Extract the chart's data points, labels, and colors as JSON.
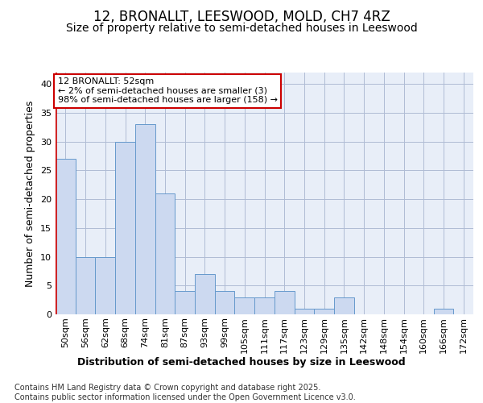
{
  "title_line1": "12, BRONALLT, LEESWOOD, MOLD, CH7 4RZ",
  "title_line2": "Size of property relative to semi-detached houses in Leeswood",
  "xlabel": "Distribution of semi-detached houses by size in Leeswood",
  "ylabel": "Number of semi-detached properties",
  "categories": [
    "50sqm",
    "56sqm",
    "62sqm",
    "68sqm",
    "74sqm",
    "81sqm",
    "87sqm",
    "93sqm",
    "99sqm",
    "105sqm",
    "111sqm",
    "117sqm",
    "123sqm",
    "129sqm",
    "135sqm",
    "142sqm",
    "148sqm",
    "154sqm",
    "160sqm",
    "166sqm",
    "172sqm"
  ],
  "values": [
    27,
    10,
    10,
    30,
    33,
    21,
    4,
    7,
    4,
    3,
    3,
    4,
    1,
    1,
    3,
    0,
    0,
    0,
    0,
    1,
    0
  ],
  "bar_fill_color": "#ccd9f0",
  "bar_edge_color": "#6699cc",
  "highlight_bar_index": 0,
  "highlight_left_edge_color": "#cc0000",
  "annotation_text": "12 BRONALLT: 52sqm\n← 2% of semi-detached houses are smaller (3)\n98% of semi-detached houses are larger (158) →",
  "annotation_box_edge_color": "#cc0000",
  "annotation_box_fill": "#ffffff",
  "ylim": [
    0,
    42
  ],
  "yticks": [
    0,
    5,
    10,
    15,
    20,
    25,
    30,
    35,
    40
  ],
  "bg_color": "#ffffff",
  "plot_bg_color": "#e8eef8",
  "grid_color": "#b0bcd4",
  "title_fontsize": 12,
  "subtitle_fontsize": 10,
  "axis_label_fontsize": 9,
  "tick_fontsize": 8,
  "annotation_fontsize": 8,
  "footer_fontsize": 7,
  "footer_text": "Contains HM Land Registry data © Crown copyright and database right 2025.\nContains public sector information licensed under the Open Government Licence v3.0."
}
